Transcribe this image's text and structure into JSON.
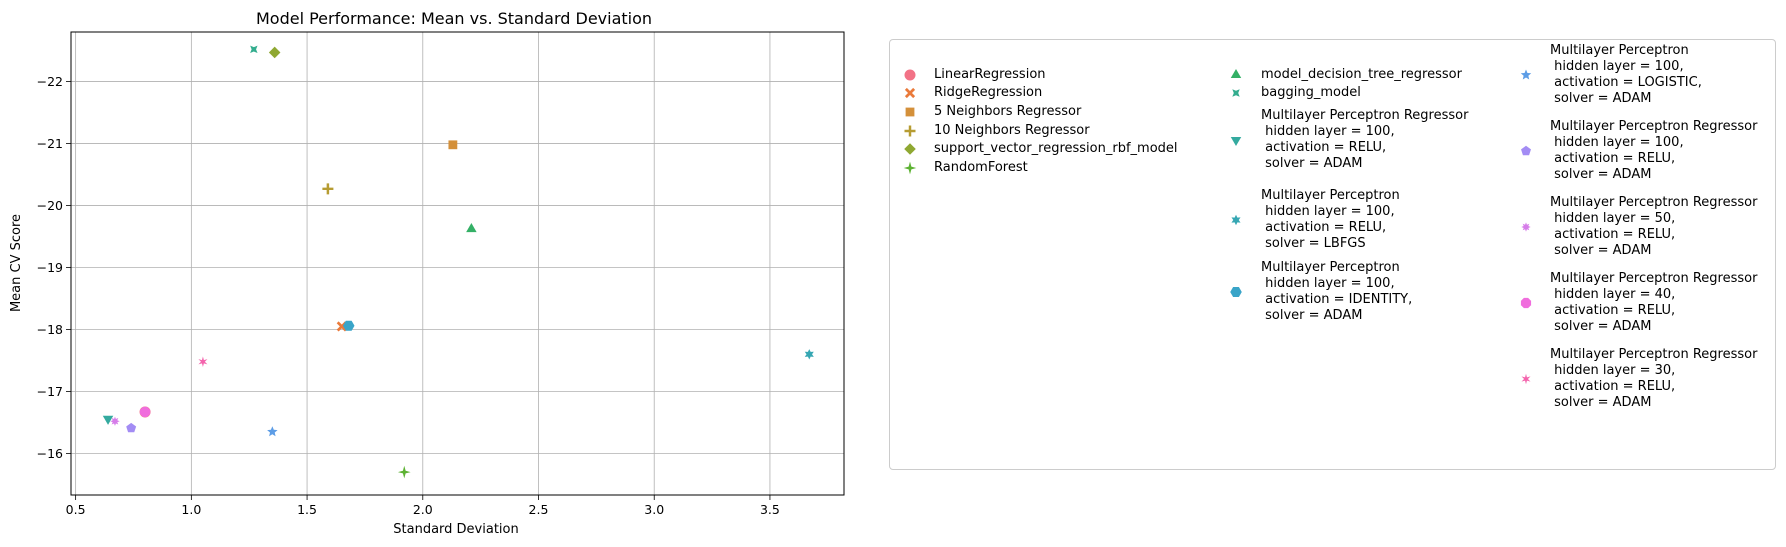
{
  "chart_data": {
    "type": "scatter",
    "title": "Model Performance: Mean vs. Standard Deviation",
    "xlabel": "Standard Deviation",
    "ylabel": "Mean CV Score",
    "xlim": [
      0.48,
      3.82
    ],
    "ylim": [
      -15.33,
      -22.8
    ],
    "y_inverted": true,
    "grid": true,
    "legend_position": "outside-right",
    "x_ticks": [
      0.5,
      1.0,
      1.5,
      2.0,
      2.5,
      3.0,
      3.5
    ],
    "x_tick_labels": [
      "0.5",
      "1.0",
      "1.5",
      "2.0",
      "2.5",
      "3.0",
      "3.5"
    ],
    "y_ticks": [
      -16,
      -17,
      -18,
      -19,
      -20,
      -21,
      -22
    ],
    "y_tick_labels": [
      "−16",
      "−17",
      "−18",
      "−19",
      "−20",
      "−21",
      "−22"
    ],
    "series": [
      {
        "name": "LinearRegression",
        "marker": "circle",
        "color": "#f27286",
        "x": 0.8,
        "y": -16.67
      },
      {
        "name": "RidgeRegression",
        "marker": "x",
        "color": "#ea7a3a",
        "x": 1.65,
        "y": -18.05
      },
      {
        "name": "5 Neighbors Regressor",
        "marker": "square",
        "color": "#d4903a",
        "x": 2.13,
        "y": -20.98
      },
      {
        "name": "10 Neighbors Regressor",
        "marker": "plus",
        "color": "#b69c32",
        "x": 1.59,
        "y": -20.27
      },
      {
        "name": "support_vector_regression_rbf_model",
        "marker": "diamond",
        "color": "#8fa832",
        "x": 1.36,
        "y": -22.47
      },
      {
        "name": "RandomForest",
        "marker": "star4",
        "color": "#5db233",
        "x": 1.92,
        "y": -15.7
      },
      {
        "name": "model_decision_tree_regressor",
        "marker": "triangle-up",
        "color": "#34b066",
        "x": 2.21,
        "y": -19.62
      },
      {
        "name": "bagging_model",
        "marker": "x-filled",
        "color": "#33ad8e",
        "x": 1.27,
        "y": -22.52
      },
      {
        "name": "Multilayer Perceptron Regressor\n hidden layer = 100,\n activation = RELU,\n solver = ADAM",
        "marker": "triangle-down",
        "color": "#34aa9f",
        "x": 0.64,
        "y": -16.56
      },
      {
        "name": "Multilayer Perceptron\n hidden layer = 100,\n activation = RELU,\n solver = LBFGS",
        "marker": "star6",
        "color": "#36a7b3",
        "x": 3.67,
        "y": -17.6
      },
      {
        "name": "Multilayer Perceptron\n hidden layer = 100,\n activation = IDENTITY,\n solver = ADAM",
        "marker": "hexagon",
        "color": "#39a4c8",
        "x": 1.68,
        "y": -18.06
      },
      {
        "name": "Multilayer Perceptron\n hidden layer = 100,\n activation = LOGISTIC,\n solver = ADAM",
        "marker": "star5",
        "color": "#5d9de6",
        "x": 1.35,
        "y": -16.35
      },
      {
        "name": "Multilayer Perceptron Regressor\n hidden layer = 100,\n activation = RELU,\n solver = ADAM",
        "marker": "pentagon",
        "color": "#a38cf4",
        "x": 0.74,
        "y": -16.41
      },
      {
        "name": "Multilayer Perceptron Regressor\n hidden layer = 50,\n activation = RELU,\n solver = ADAM",
        "marker": "star8",
        "color": "#d67de9",
        "x": 0.67,
        "y": -16.52
      },
      {
        "name": "Multilayer Perceptron Regressor\n hidden layer = 40,\n activation = RELU,\n solver = ADAM",
        "marker": "octagon",
        "color": "#f06ddd",
        "x": 0.8,
        "y": -16.67
      },
      {
        "name": "Multilayer Perceptron Regressor\n hidden layer = 30,\n activation = RELU,\n solver = ADAM",
        "marker": "star6-thin",
        "color": "#f464ad",
        "x": 1.05,
        "y": -17.48
      }
    ]
  }
}
